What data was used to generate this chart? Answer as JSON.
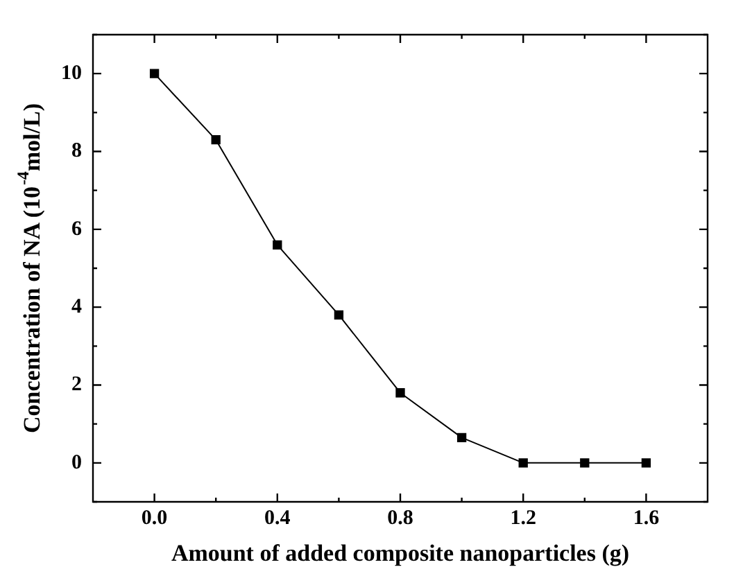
{
  "chart_data": {
    "type": "line",
    "xlabel": "Amount of added composite nanoparticles (g)",
    "ylabel": "Concentration of NA (10$^{-4}$mol/L)",
    "x": [
      0,
      0.2,
      0.4,
      0.6,
      0.8,
      1.0,
      1.2,
      1.4,
      1.6
    ],
    "series": [
      {
        "color": "#000000",
        "values": [
          10,
          8.3,
          5.6,
          3.8,
          1.8,
          0.65,
          0,
          0,
          0
        ]
      }
    ],
    "xlim": [
      -0.2,
      1.8
    ],
    "ylim": [
      -1,
      11
    ],
    "xticks": [
      {
        "value": 0,
        "label": "0.0"
      },
      {
        "value": 0.2,
        "label": null
      },
      {
        "value": 0.4,
        "label": "0.4"
      },
      {
        "value": 0.6,
        "label": null
      },
      {
        "value": 0.8,
        "label": "0.8"
      },
      {
        "value": 1.0,
        "label": null
      },
      {
        "value": 1.2,
        "label": "1.2"
      },
      {
        "value": 1.4,
        "label": null
      },
      {
        "value": 1.6,
        "label": "1.6"
      }
    ],
    "yticks": [
      {
        "value": -1,
        "label": null
      },
      0,
      {
        "value": 1,
        "label": null
      },
      2,
      {
        "value": 3,
        "label": null
      },
      4,
      {
        "value": 5,
        "label": null
      },
      6,
      {
        "value": 7,
        "label": null
      },
      8,
      {
        "value": 9,
        "label": null
      },
      10,
      {
        "value": 11,
        "label": null
      }
    ],
    "marker": "square",
    "line_style": "solid",
    "grid": false,
    "legend": false
  }
}
